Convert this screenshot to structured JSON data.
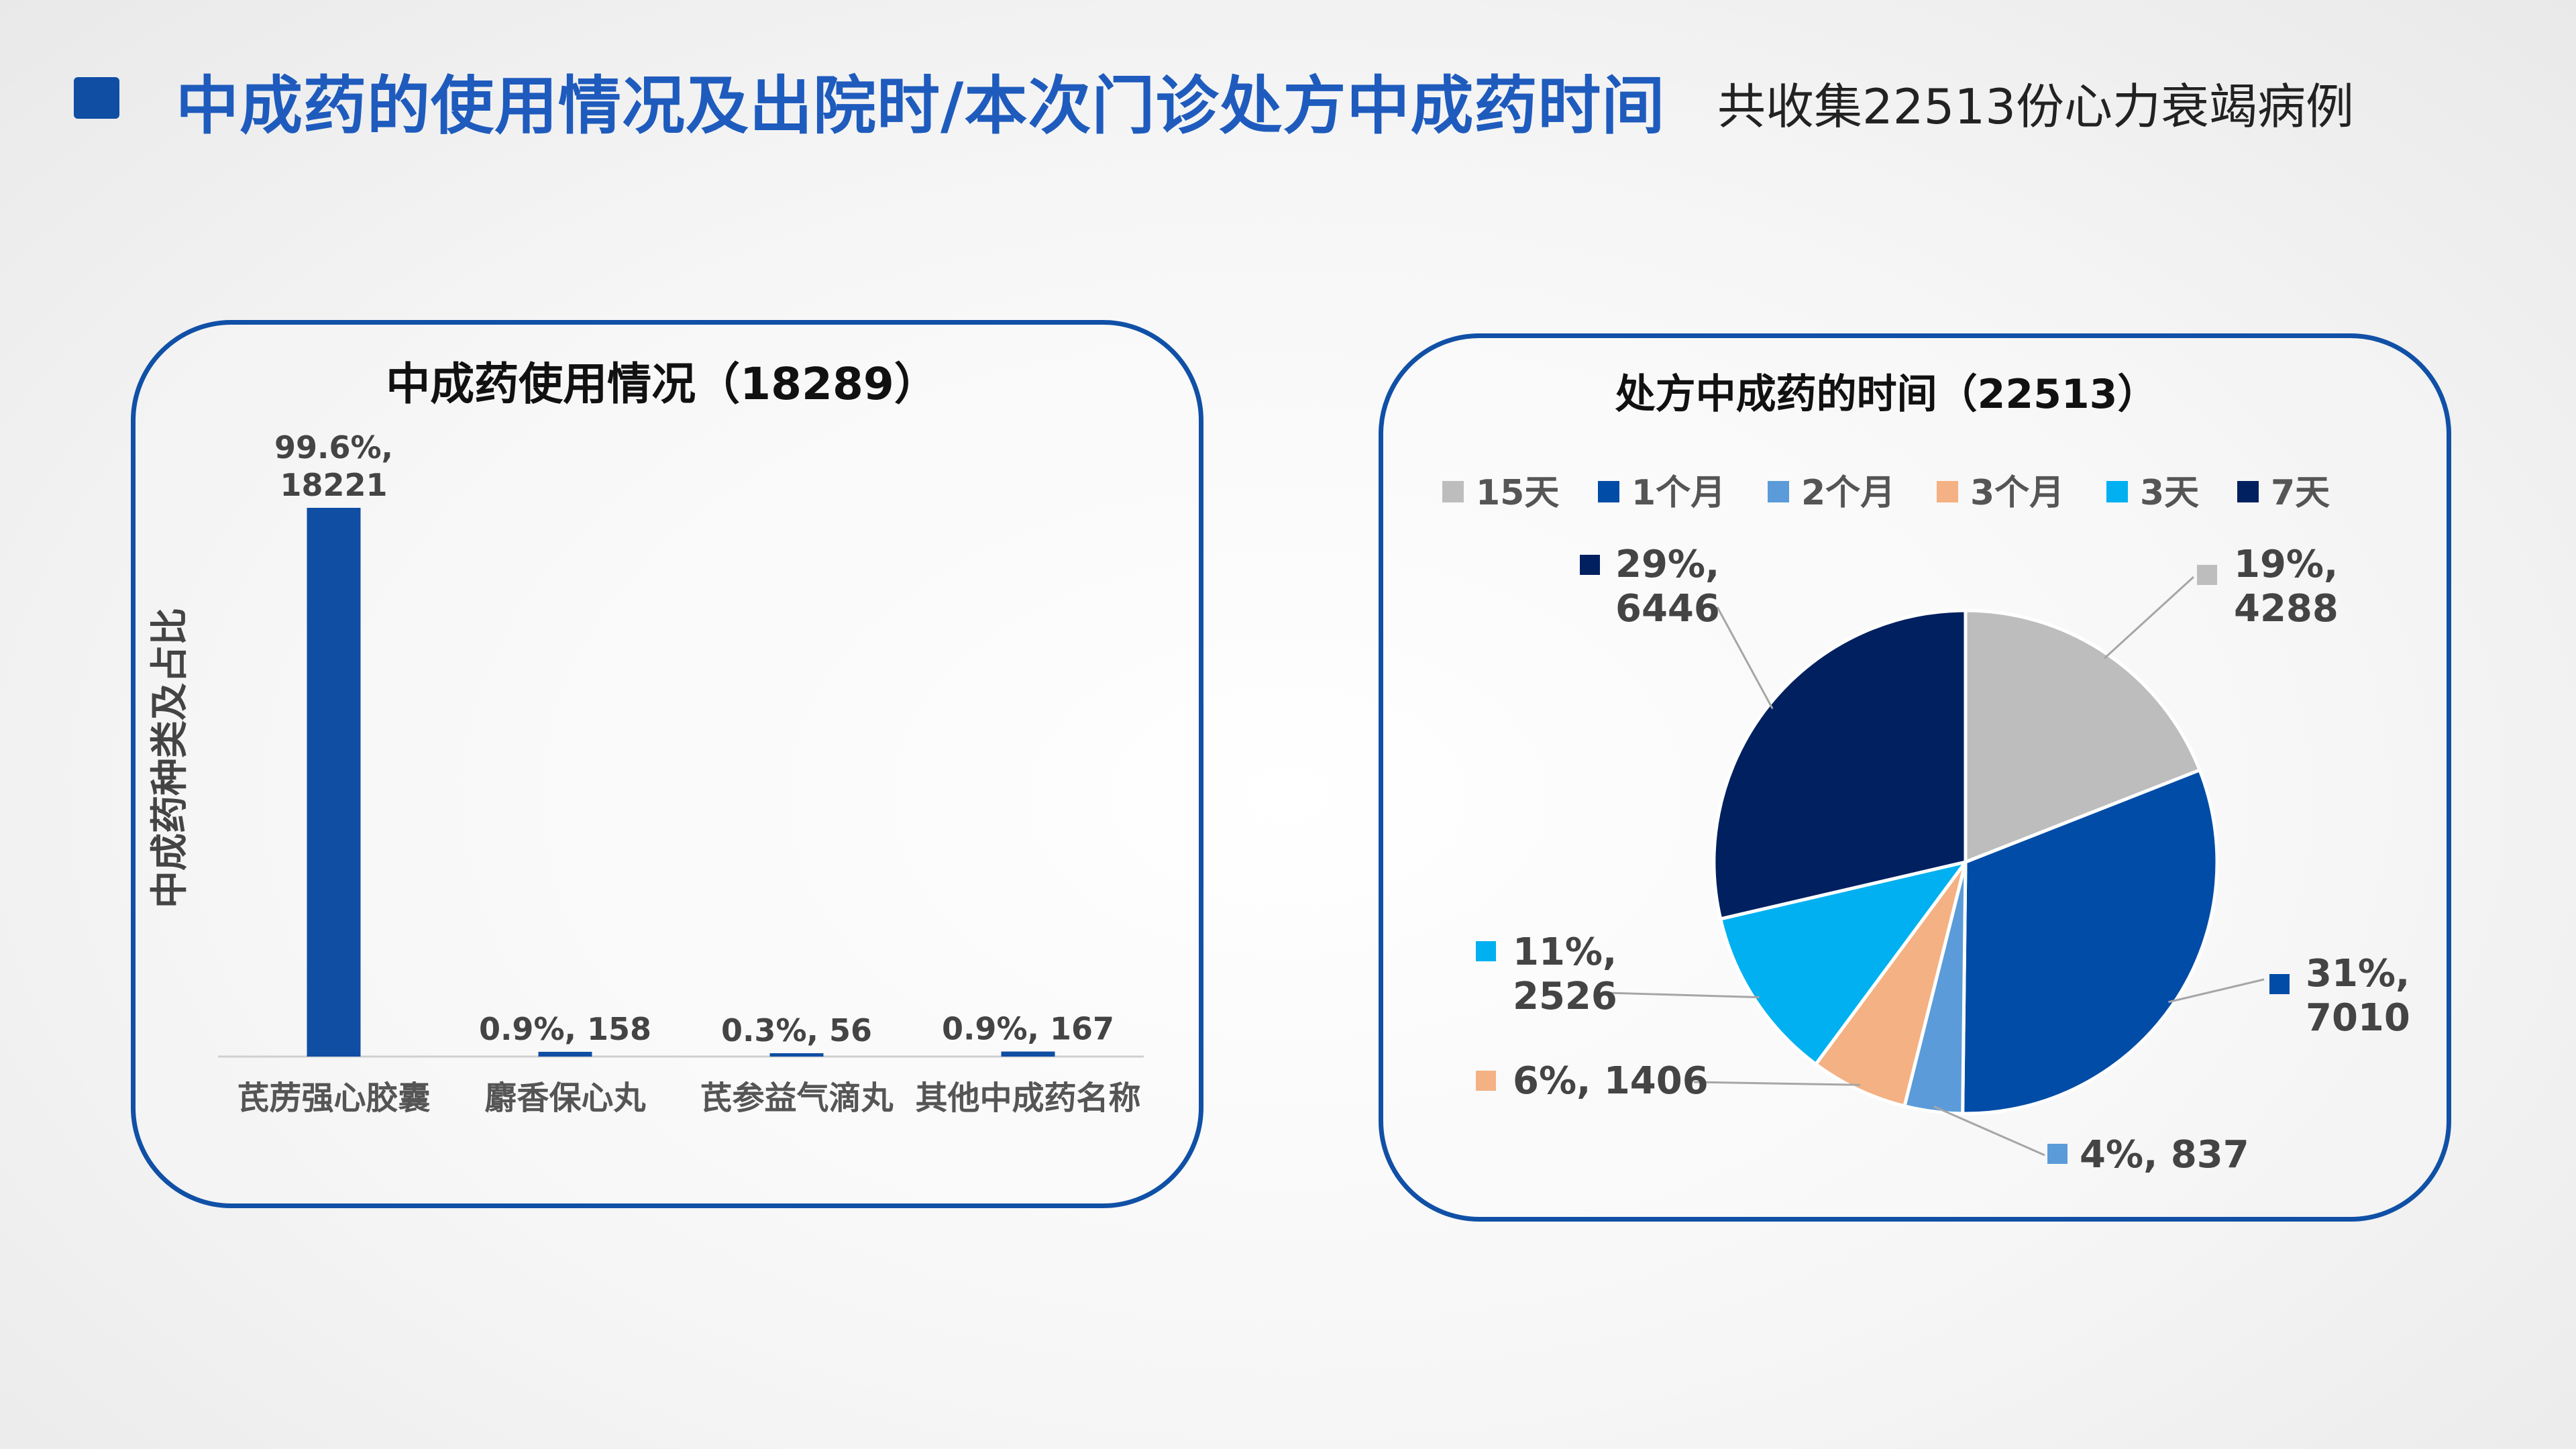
{
  "header": {
    "title": "中成药的使用情况及出院时/本次门诊处方中成药时间",
    "subtitle": "共收集22513份心力衰竭病例"
  },
  "colors": {
    "accent": "#1050a6",
    "title": "#1e5bbd",
    "bar": "#0f4ea3"
  },
  "chart_data": [
    {
      "type": "bar",
      "title": "中成药使用情况（18289）",
      "ylabel": "中成药种类及占比",
      "xlabel": "",
      "categories": [
        "芪苈强心胶囊",
        "麝香保心丸",
        "芪参益气滴丸",
        "其他中成药名称"
      ],
      "values": [
        18221,
        158,
        56,
        167
      ],
      "percent_labels": [
        "99.6%",
        "0.9%",
        "0.3%",
        "0.9%"
      ],
      "data_labels": [
        "99.6%,|18221",
        "0.9%, 158",
        "0.3%, 56",
        "0.9%, 167"
      ],
      "ylim": [
        0,
        18221
      ],
      "grid": false,
      "color": "#0f4ea3"
    },
    {
      "type": "pie",
      "title": "处方中成药的时间（22513）",
      "legend_position": "top",
      "slices": [
        {
          "label": "15天",
          "value": 4288,
          "percent": "19%",
          "color": "#bdbdbd",
          "data_label": "19%,|4288"
        },
        {
          "label": "1个月",
          "value": 7010,
          "percent": "31%",
          "color": "#004ca6",
          "data_label": "31%,|7010"
        },
        {
          "label": "2个月",
          "value": 837,
          "percent": "4%",
          "color": "#5b9bd9",
          "data_label": "4%, 837"
        },
        {
          "label": "3个月",
          "value": 1406,
          "percent": "6%",
          "color": "#f4b183",
          "data_label": "6%, 1406"
        },
        {
          "label": "3天",
          "value": 2526,
          "percent": "11%",
          "color": "#00b0f0",
          "data_label": "11%,|2526"
        },
        {
          "label": "7天",
          "value": 6446,
          "percent": "29%",
          "color": "#002060",
          "data_label": "29%,|6446"
        }
      ]
    }
  ]
}
